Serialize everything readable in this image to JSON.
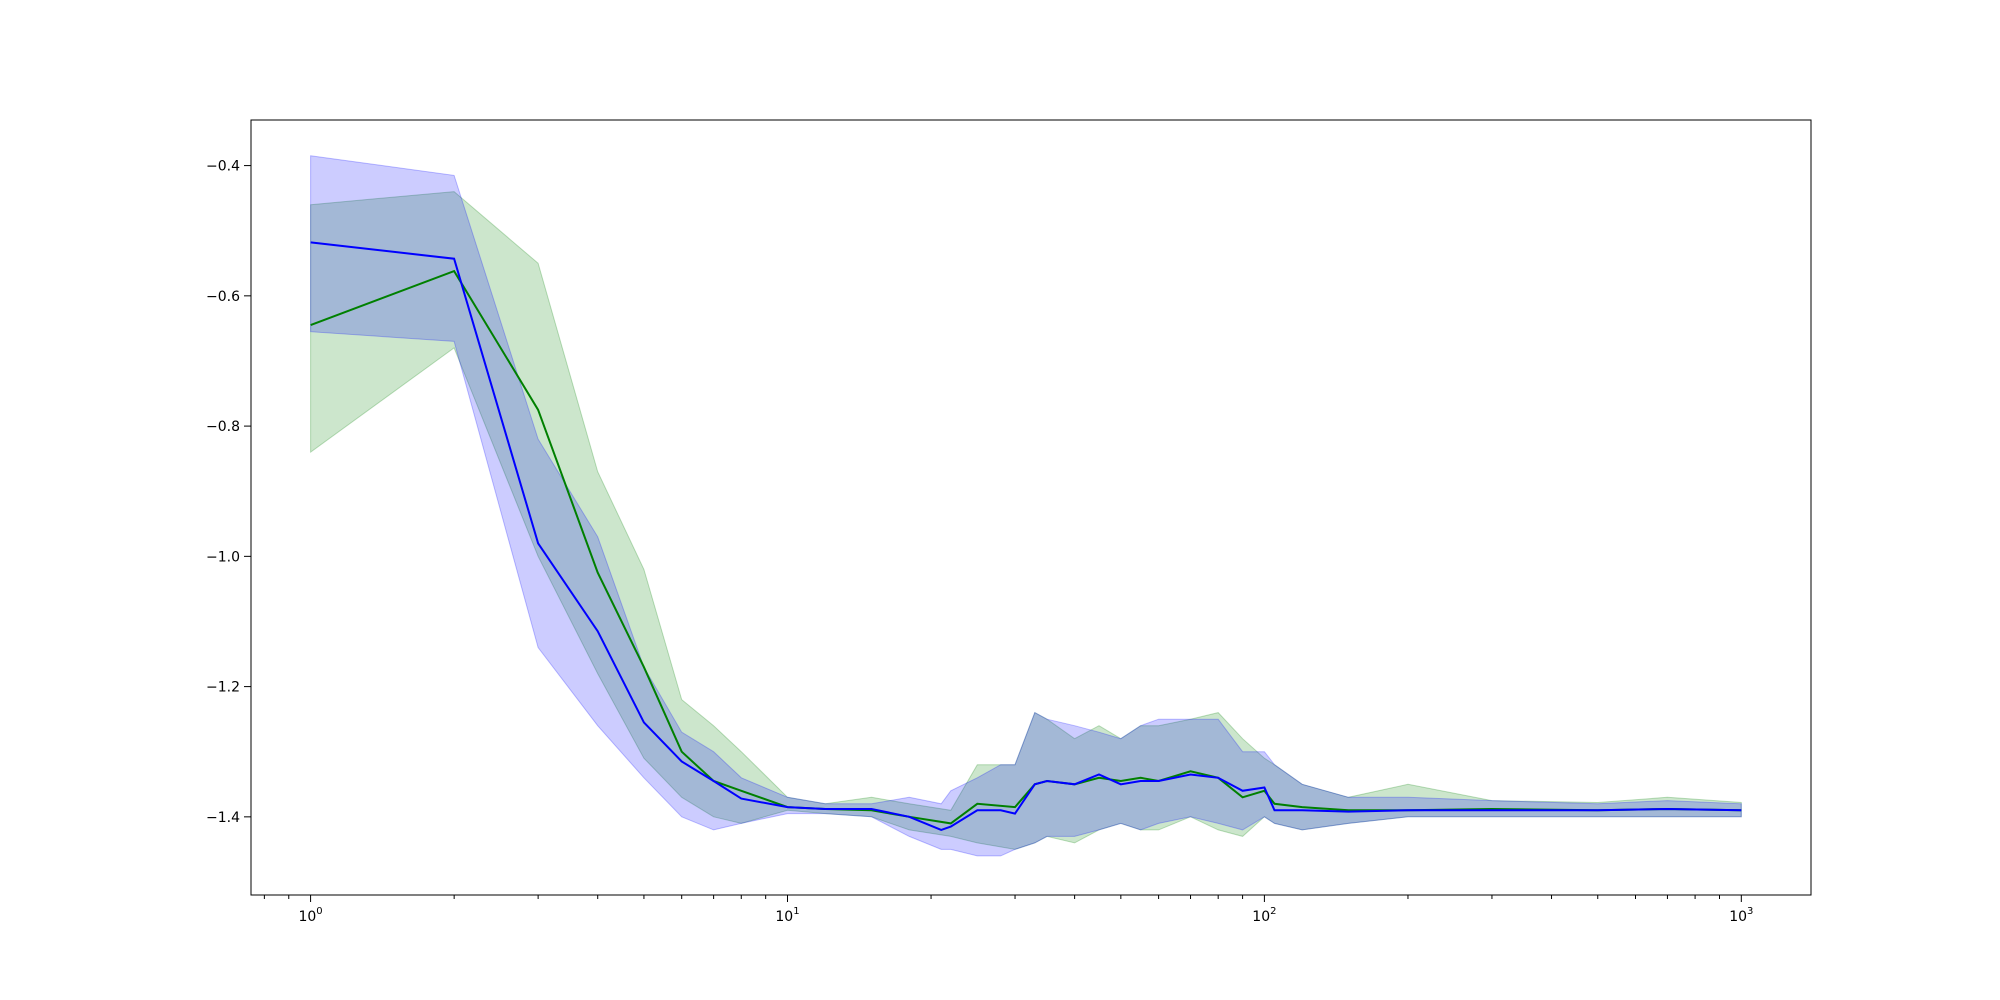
{
  "colors": {
    "series_a_line": "#008000",
    "series_a_band": "#008000",
    "series_b_line": "#0000ff",
    "series_b_band": "#0000ff",
    "axes": "#000000",
    "background": "#ffffff"
  },
  "chart_data": {
    "type": "line",
    "title": "",
    "xlabel": "",
    "ylabel": "",
    "x_scale": "log",
    "xlim": [
      0.75,
      1400
    ],
    "ylim": [
      -1.52,
      -0.33
    ],
    "grid": false,
    "legend": "none",
    "x_ticks": [
      {
        "value": 1,
        "base": "10",
        "exp": "0"
      },
      {
        "value": 10,
        "base": "10",
        "exp": "1"
      },
      {
        "value": 100,
        "base": "10",
        "exp": "2"
      },
      {
        "value": 1000,
        "base": "10",
        "exp": "3"
      }
    ],
    "y_ticks": [
      {
        "value": -0.4,
        "label": "−0.4"
      },
      {
        "value": -0.6,
        "label": "−0.6"
      },
      {
        "value": -0.8,
        "label": "−0.8"
      },
      {
        "value": -1.0,
        "label": "−1.0"
      },
      {
        "value": -1.2,
        "label": "−1.2"
      },
      {
        "value": -1.4,
        "label": "−1.4"
      }
    ],
    "series": [
      {
        "color_key": "series_a",
        "x": [
          1,
          2,
          3,
          4,
          5,
          6,
          7,
          8,
          10,
          12,
          15,
          18,
          22,
          25,
          30,
          33,
          35,
          40,
          45,
          50,
          55,
          60,
          70,
          80,
          90,
          100,
          105,
          120,
          150,
          200,
          300,
          500,
          700,
          1000
        ],
        "mean": [
          -0.645,
          -0.562,
          -0.775,
          -1.025,
          -1.17,
          -1.3,
          -1.345,
          -1.36,
          -1.385,
          -1.388,
          -1.39,
          -1.4,
          -1.41,
          -1.38,
          -1.385,
          -1.35,
          -1.345,
          -1.35,
          -1.34,
          -1.345,
          -1.34,
          -1.345,
          -1.33,
          -1.34,
          -1.37,
          -1.36,
          -1.38,
          -1.385,
          -1.39,
          -1.39,
          -1.388,
          -1.39,
          -1.388,
          -1.39
        ],
        "upper": [
          -0.46,
          -0.44,
          -0.55,
          -0.87,
          -1.02,
          -1.22,
          -1.26,
          -1.3,
          -1.37,
          -1.38,
          -1.37,
          -1.38,
          -1.39,
          -1.32,
          -1.32,
          -1.24,
          -1.25,
          -1.28,
          -1.26,
          -1.28,
          -1.26,
          -1.26,
          -1.25,
          -1.24,
          -1.28,
          -1.31,
          -1.32,
          -1.35,
          -1.37,
          -1.35,
          -1.375,
          -1.378,
          -1.37,
          -1.378
        ],
        "lower": [
          -0.84,
          -0.68,
          -1.0,
          -1.18,
          -1.31,
          -1.37,
          -1.4,
          -1.41,
          -1.39,
          -1.395,
          -1.4,
          -1.42,
          -1.43,
          -1.44,
          -1.45,
          -1.44,
          -1.43,
          -1.44,
          -1.42,
          -1.41,
          -1.42,
          -1.42,
          -1.4,
          -1.42,
          -1.43,
          -1.4,
          -1.41,
          -1.42,
          -1.41,
          -1.4,
          -1.4,
          -1.4,
          -1.4,
          -1.4
        ]
      },
      {
        "color_key": "series_b",
        "x": [
          1,
          2,
          3,
          4,
          5,
          6,
          7,
          8,
          10,
          12,
          15,
          18,
          21,
          22,
          25,
          28,
          30,
          33,
          35,
          40,
          45,
          50,
          55,
          60,
          70,
          80,
          90,
          100,
          105,
          120,
          150,
          200,
          300,
          500,
          700,
          1000
        ],
        "mean": [
          -0.518,
          -0.543,
          -0.98,
          -1.115,
          -1.255,
          -1.315,
          -1.345,
          -1.372,
          -1.385,
          -1.388,
          -1.388,
          -1.4,
          -1.42,
          -1.415,
          -1.39,
          -1.39,
          -1.395,
          -1.35,
          -1.345,
          -1.35,
          -1.335,
          -1.35,
          -1.345,
          -1.345,
          -1.335,
          -1.34,
          -1.36,
          -1.355,
          -1.39,
          -1.39,
          -1.392,
          -1.39,
          -1.39,
          -1.39,
          -1.388,
          -1.39
        ],
        "upper": [
          -0.385,
          -0.415,
          -0.82,
          -0.97,
          -1.17,
          -1.27,
          -1.3,
          -1.34,
          -1.37,
          -1.38,
          -1.38,
          -1.37,
          -1.38,
          -1.36,
          -1.34,
          -1.32,
          -1.32,
          -1.24,
          -1.25,
          -1.26,
          -1.27,
          -1.28,
          -1.26,
          -1.25,
          -1.25,
          -1.25,
          -1.3,
          -1.3,
          -1.32,
          -1.35,
          -1.37,
          -1.37,
          -1.375,
          -1.38,
          -1.375,
          -1.38
        ],
        "lower": [
          -0.655,
          -0.67,
          -1.14,
          -1.26,
          -1.34,
          -1.4,
          -1.42,
          -1.41,
          -1.395,
          -1.395,
          -1.4,
          -1.43,
          -1.45,
          -1.45,
          -1.46,
          -1.46,
          -1.45,
          -1.44,
          -1.43,
          -1.43,
          -1.42,
          -1.41,
          -1.42,
          -1.41,
          -1.4,
          -1.41,
          -1.42,
          -1.4,
          -1.41,
          -1.42,
          -1.41,
          -1.4,
          -1.4,
          -1.4,
          -1.4,
          -1.4
        ]
      }
    ]
  }
}
